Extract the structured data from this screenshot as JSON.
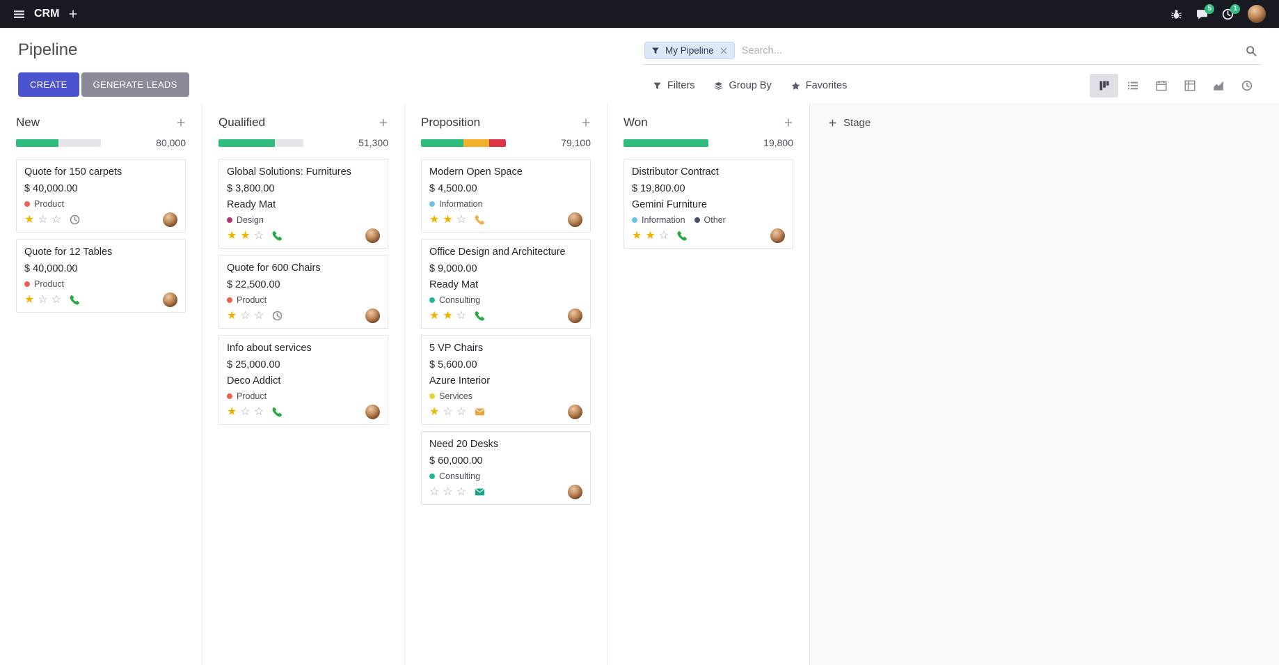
{
  "colors": {
    "topbar_bg": "#191921",
    "primary_button": "#4b53cf",
    "success": "#2ebd7e",
    "star_active": "#eeb500"
  },
  "topbar": {
    "app_name": "CRM",
    "messages_badge": "5",
    "activities_badge": "1"
  },
  "control_panel": {
    "title": "Pipeline",
    "create": "CREATE",
    "generate_leads": "GENERATE LEADS",
    "search": {
      "facet": "My Pipeline",
      "placeholder": "Search..."
    },
    "filters": "Filters",
    "group_by": "Group By",
    "favorites": "Favorites"
  },
  "view_switcher": {
    "active": "kanban",
    "views": [
      "kanban",
      "list",
      "calendar",
      "pivot",
      "graph",
      "activity"
    ]
  },
  "kanban": {
    "add_stage_label": "Stage",
    "columns": [
      {
        "name": "New",
        "total": "80,000",
        "progress": [
          {
            "state": "success",
            "color": "#2ebd7e",
            "pct": 50
          }
        ],
        "cards": [
          {
            "title": "Quote for 150 carpets",
            "amount": "$ 40,000.00",
            "tags": [
              {
                "label": "Product",
                "color": "#f06050"
              }
            ],
            "stars": 1,
            "activity": {
              "type": "clock",
              "color": "#8d8d93"
            }
          },
          {
            "title": "Quote for 12 Tables",
            "amount": "$ 40,000.00",
            "tags": [
              {
                "label": "Product",
                "color": "#f06050"
              }
            ],
            "stars": 1,
            "activity": {
              "type": "phone",
              "color": "#28a745"
            }
          }
        ]
      },
      {
        "name": "Qualified",
        "total": "51,300",
        "progress": [
          {
            "state": "success",
            "color": "#2ebd7e",
            "pct": 66
          }
        ],
        "cards": [
          {
            "title": "Global Solutions: Furnitures",
            "amount": "$ 3,800.00",
            "partner": "Ready Mat",
            "tags": [
              {
                "label": "Design",
                "color": "#b0346e"
              }
            ],
            "stars": 2,
            "activity": {
              "type": "phone",
              "color": "#28a745"
            }
          },
          {
            "title": "Quote for 600 Chairs",
            "amount": "$ 22,500.00",
            "tags": [
              {
                "label": "Product",
                "color": "#f06050"
              }
            ],
            "stars": 1,
            "activity": {
              "type": "clock",
              "color": "#8d8d93"
            }
          },
          {
            "title": "Info about services",
            "amount": "$ 25,000.00",
            "partner": "Deco Addict",
            "tags": [
              {
                "label": "Product",
                "color": "#f06050"
              }
            ],
            "stars": 1,
            "activity": {
              "type": "phone",
              "color": "#28a745"
            }
          }
        ]
      },
      {
        "name": "Proposition",
        "total": "79,100",
        "progress": [
          {
            "state": "success",
            "color": "#2ebd7e",
            "pct": 50
          },
          {
            "state": "warning",
            "color": "#f0b22a",
            "pct": 30
          },
          {
            "state": "danger",
            "color": "#dc3545",
            "pct": 20
          }
        ],
        "cards": [
          {
            "title": "Modern Open Space",
            "amount": "$ 4,500.00",
            "tags": [
              {
                "label": "Information",
                "color": "#6ec2e8"
              }
            ],
            "stars": 2,
            "activity": {
              "type": "phone",
              "color": "#f0ad4e"
            }
          },
          {
            "title": "Office Design and Architecture",
            "amount": "$ 9,000.00",
            "partner": "Ready Mat",
            "tags": [
              {
                "label": "Consulting",
                "color": "#21b799"
              }
            ],
            "stars": 2,
            "activity": {
              "type": "phone",
              "color": "#28a745"
            }
          },
          {
            "title": "5 VP Chairs",
            "amount": "$ 5,600.00",
            "partner": "Azure Interior",
            "tags": [
              {
                "label": "Services",
                "color": "#e8d034"
              }
            ],
            "stars": 1,
            "activity": {
              "type": "envelope",
              "color": "#e8a33d"
            }
          },
          {
            "title": "Need 20 Desks",
            "amount": "$ 60,000.00",
            "tags": [
              {
                "label": "Consulting",
                "color": "#21b799"
              }
            ],
            "stars": 0,
            "activity": {
              "type": "envelope",
              "color": "#16a589"
            }
          }
        ]
      },
      {
        "name": "Won",
        "total": "19,800",
        "progress": [
          {
            "state": "success",
            "color": "#2ebd7e",
            "pct": 100
          }
        ],
        "cards": [
          {
            "title": "Distributor Contract",
            "amount": "$ 19,800.00",
            "partner": "Gemini Furniture",
            "tags": [
              {
                "label": "Information",
                "color": "#6ec2e8"
              },
              {
                "label": "Other",
                "color": "#475166"
              }
            ],
            "stars": 2,
            "activity": {
              "type": "phone",
              "color": "#28a745"
            }
          }
        ]
      }
    ]
  }
}
